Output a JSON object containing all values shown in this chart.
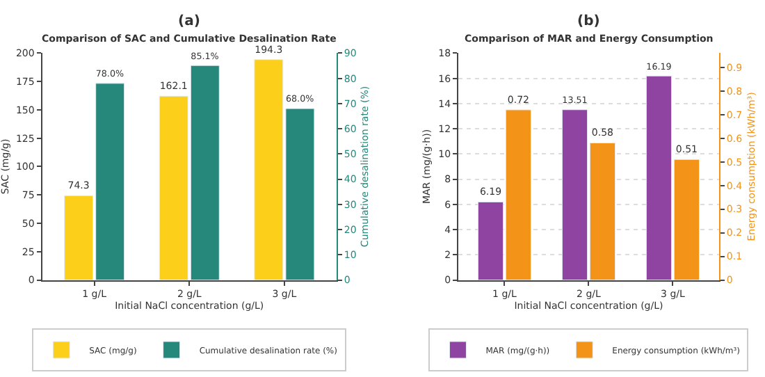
{
  "chart_data": [
    {
      "type": "bar",
      "title": "(a)",
      "subtitle": "Comparison of SAC and Cumulative Desalination Rate",
      "xlabel": "Initial NaCl concentration (g/L)",
      "ylabel": "SAC (mg/g)",
      "y2label": "Cumulative desalination rate (%)",
      "categories": [
        "1 g/L",
        "2 g/L",
        "3 g/L"
      ],
      "series": [
        {
          "name": "SAC (mg/g)",
          "color": "#fcd01a",
          "values": [
            74.3,
            162.1,
            194.3
          ],
          "value_labels": [
            "74.3",
            "162.1",
            "194.3"
          ]
        },
        {
          "name": "Cumulative desalination rate (%)",
          "color": "#25887a",
          "axis": "y2",
          "values": [
            78.0,
            85.1,
            68.0
          ],
          "value_labels": [
            "78.0%",
            "85.1%",
            "68.0%"
          ]
        }
      ],
      "ylim": [
        0,
        200
      ],
      "yticks": [
        0,
        25,
        50,
        75,
        100,
        125,
        150,
        175,
        200
      ],
      "y2lim": [
        0,
        90
      ],
      "y2ticks": [
        0,
        10,
        20,
        30,
        40,
        50,
        60,
        70,
        80,
        90
      ],
      "legend": "bottom",
      "grid": false
    },
    {
      "type": "bar",
      "title": "(b)",
      "subtitle": "Comparison of MAR and Energy Consumption",
      "xlabel": "Initial NaCl concentration (g/L)",
      "ylabel": "MAR (mg/(g·h))",
      "y2label": "Energy consumption (kWh/m³)",
      "categories": [
        "1 g/L",
        "2 g/L",
        "3 g/L"
      ],
      "series": [
        {
          "name": "MAR (mg/(g·h))",
          "color": "#8e44a0",
          "values": [
            6.19,
            13.51,
            16.19
          ]
        },
        {
          "name": "Energy consumption (kWh/m³)",
          "color": "#f39318",
          "axis": "y2",
          "values": [
            0.72,
            0.58,
            0.51
          ]
        }
      ],
      "data_labels": true,
      "ylim": [
        0,
        18
      ],
      "yticks": [
        0,
        2,
        4,
        6,
        8,
        10,
        12,
        14,
        16,
        18
      ],
      "y2lim": [
        0,
        0.96
      ],
      "y2ticks": [
        0,
        0.1,
        0.2,
        0.3,
        0.4,
        0.5,
        0.6,
        0.7,
        0.8,
        0.9
      ],
      "legend": "bottom",
      "grid": "y"
    }
  ]
}
